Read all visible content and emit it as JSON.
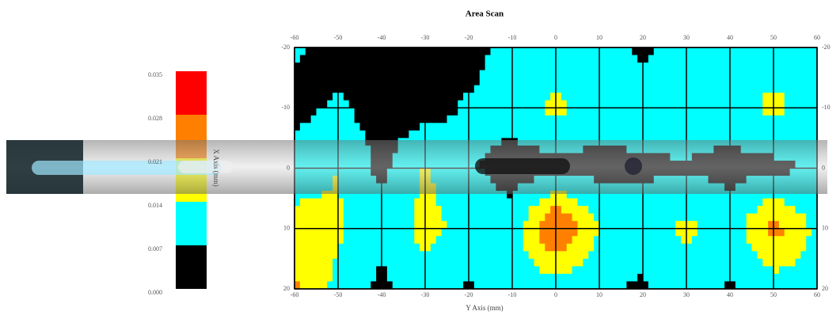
{
  "chart_data": {
    "type": "contour",
    "title": "Area Scan",
    "xlabel": "Y Axis (mm)",
    "ylabel": "X Axis (mm)",
    "xlim": [
      -60,
      60
    ],
    "ylim": [
      -20,
      20
    ],
    "xticks": [
      -60,
      -50,
      -40,
      -30,
      -20,
      -10,
      0,
      10,
      20,
      30,
      40,
      50,
      60
    ],
    "yticks": [
      -20,
      -10,
      0,
      10,
      20
    ],
    "grid": true,
    "x": [
      -60,
      -50,
      -40,
      -30,
      -20,
      -10,
      0,
      10,
      20,
      30,
      40,
      50,
      60
    ],
    "y": [
      -20,
      -10,
      0,
      10,
      20
    ],
    "z": [
      [
        0.008,
        0.004,
        0.005,
        0.003,
        0.004,
        0.01,
        0.01,
        0.01,
        0.006,
        0.01,
        0.012,
        0.01,
        0.012
      ],
      [
        0.005,
        0.008,
        0.004,
        0.004,
        0.008,
        0.01,
        0.016,
        0.01,
        0.01,
        0.012,
        0.01,
        0.016,
        0.01
      ],
      [
        0.01,
        0.014,
        0.005,
        0.015,
        0.008,
        0.004,
        0.004,
        0.005,
        0.006,
        0.006,
        0.005,
        0.005,
        0.008
      ],
      [
        0.017,
        0.015,
        0.01,
        0.016,
        0.012,
        0.01,
        0.03,
        0.014,
        0.01,
        0.016,
        0.01,
        0.024,
        0.012
      ],
      [
        0.022,
        0.012,
        0.005,
        0.012,
        0.006,
        0.01,
        0.01,
        0.008,
        0.006,
        0.01,
        0.006,
        0.01,
        0.012
      ]
    ],
    "colorbar": {
      "ticks": [
        {
          "value": 0,
          "label": "0.000"
        },
        {
          "value": 0.007,
          "label": "0.007"
        },
        {
          "value": 0.014,
          "label": "0.014"
        },
        {
          "value": 0.021,
          "label": "0.021"
        },
        {
          "value": 0.028,
          "label": "0.028"
        },
        {
          "value": 0.035,
          "label": "0.035"
        }
      ],
      "colors": [
        "#000000",
        "#00ffff",
        "#ffff00",
        "#ff8000",
        "#ff0000"
      ]
    }
  }
}
